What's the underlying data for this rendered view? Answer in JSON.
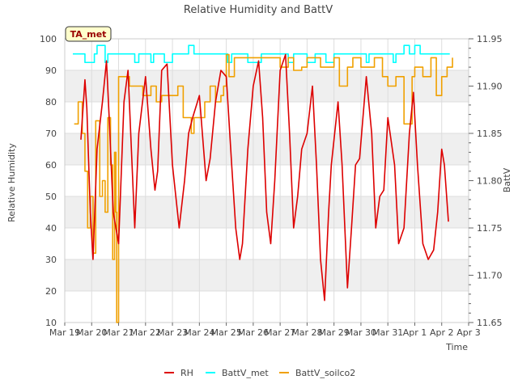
{
  "chart_data": {
    "type": "line",
    "title": "Relative Humidity and BattV",
    "site_label": "TA_met",
    "xlabel": "Time",
    "ylabel_left": "Relative Humidity",
    "ylabel_right": "BattV",
    "x_ticks": [
      "Mar 19",
      "Mar 20",
      "Mar 21",
      "Mar 22",
      "Mar 23",
      "Mar 24",
      "Mar 25",
      "Mar 26",
      "Mar 27",
      "Mar 28",
      "Mar 29",
      "Mar 30",
      "Mar 31",
      "Apr 1",
      "Apr 2",
      "Apr 3"
    ],
    "xlim_days": [
      0,
      15
    ],
    "ylim_left": [
      10,
      100
    ],
    "yticks_left": [
      "10",
      "20",
      "30",
      "40",
      "50",
      "60",
      "70",
      "80",
      "90",
      "100"
    ],
    "ylim_right": [
      11.65,
      11.95
    ],
    "yticks_right": [
      "11.65",
      "11.70",
      "11.75",
      "11.80",
      "11.85",
      "11.90",
      "11.95"
    ],
    "grid": true,
    "legend_position": "bottom",
    "series": [
      {
        "name": "RH",
        "axis": "left",
        "color": "#dd0000",
        "x": [
          0.6,
          0.75,
          0.82,
          0.95,
          1.05,
          1.2,
          1.4,
          1.55,
          1.65,
          1.8,
          2.0,
          2.2,
          2.35,
          2.5,
          2.6,
          2.75,
          3.0,
          3.2,
          3.35,
          3.45,
          3.6,
          3.8,
          4.0,
          4.25,
          4.45,
          4.6,
          4.75,
          5.0,
          5.25,
          5.4,
          5.6,
          5.8,
          6.0,
          6.2,
          6.35,
          6.5,
          6.6,
          6.8,
          7.0,
          7.2,
          7.35,
          7.5,
          7.65,
          7.8,
          8.0,
          8.2,
          8.35,
          8.5,
          8.65,
          8.8,
          9.0,
          9.2,
          9.35,
          9.5,
          9.65,
          9.8,
          9.9,
          10.0,
          10.15,
          10.3,
          10.5,
          10.65,
          10.8,
          10.95,
          11.2,
          11.4,
          11.55,
          11.7,
          11.85,
          12.0,
          12.25,
          12.4,
          12.6,
          12.8,
          12.95,
          13.1,
          13.3,
          13.5,
          13.7,
          13.85,
          14.0,
          14.1,
          14.25
        ],
        "y": [
          68,
          87,
          78,
          45,
          30,
          65,
          80,
          93,
          75,
          45,
          35,
          80,
          90,
          60,
          40,
          70,
          88,
          65,
          52,
          58,
          90,
          92,
          60,
          40,
          55,
          70,
          75,
          82,
          55,
          62,
          80,
          90,
          88,
          60,
          40,
          30,
          35,
          65,
          85,
          93,
          75,
          45,
          35,
          55,
          90,
          95,
          70,
          40,
          50,
          65,
          70,
          85,
          60,
          30,
          17,
          45,
          60,
          68,
          80,
          60,
          21,
          40,
          60,
          62,
          88,
          70,
          40,
          50,
          52,
          75,
          60,
          35,
          40,
          70,
          83,
          60,
          35,
          30,
          33,
          45,
          65,
          60,
          42
        ]
      },
      {
        "name": "BattV_met",
        "axis": "right",
        "color": "#00ffff",
        "x": [
          0.3,
          0.7,
          0.75,
          0.9,
          1.1,
          1.2,
          1.4,
          1.5,
          1.6,
          1.75,
          1.85,
          2.2,
          2.5,
          2.6,
          2.75,
          3.0,
          3.2,
          3.3,
          3.5,
          3.7,
          3.8,
          4.0,
          4.2,
          4.4,
          4.6,
          4.8,
          5.1,
          5.2,
          5.6,
          6.0,
          6.05,
          6.2,
          6.4,
          6.6,
          6.8,
          7.3,
          7.6,
          8.2,
          8.3,
          8.5,
          8.6,
          9.0,
          9.3,
          9.6,
          9.7,
          10.0,
          10.2,
          10.5,
          11.0,
          11.2,
          11.3,
          11.6,
          12.0,
          12.2,
          12.3,
          12.5,
          12.6,
          12.8,
          13.0,
          13.2,
          13.5,
          13.7,
          14.0,
          14.3
        ],
        "y": [
          11.934,
          11.934,
          11.925,
          11.925,
          11.934,
          11.943,
          11.943,
          11.925,
          11.934,
          11.934,
          11.934,
          11.934,
          11.934,
          11.925,
          11.934,
          11.934,
          11.925,
          11.934,
          11.934,
          11.925,
          11.925,
          11.934,
          11.934,
          11.934,
          11.943,
          11.934,
          11.934,
          11.934,
          11.934,
          11.934,
          11.925,
          11.934,
          11.934,
          11.934,
          11.925,
          11.934,
          11.934,
          11.934,
          11.925,
          11.934,
          11.934,
          11.925,
          11.934,
          11.934,
          11.925,
          11.934,
          11.934,
          11.934,
          11.934,
          11.925,
          11.934,
          11.934,
          11.934,
          11.925,
          11.934,
          11.934,
          11.943,
          11.934,
          11.943,
          11.934,
          11.934,
          11.934,
          11.934,
          11.934
        ]
      },
      {
        "name": "BattV_soilco2",
        "axis": "left",
        "color": "#f0a000",
        "x": [
          0.35,
          0.5,
          0.65,
          0.75,
          0.85,
          0.95,
          1.05,
          1.15,
          1.3,
          1.4,
          1.5,
          1.6,
          1.7,
          1.78,
          1.85,
          1.9,
          1.93,
          2.0,
          2.2,
          2.4,
          2.6,
          2.9,
          3.0,
          3.2,
          3.4,
          3.6,
          3.8,
          4.0,
          4.2,
          4.4,
          4.6,
          4.7,
          4.8,
          5.0,
          5.2,
          5.4,
          5.6,
          5.8,
          5.9,
          6.0,
          6.1,
          6.3,
          6.5,
          6.8,
          7.0,
          7.5,
          7.8,
          8.0,
          8.3,
          8.5,
          8.8,
          9.0,
          9.5,
          10.0,
          10.2,
          10.5,
          10.7,
          11.0,
          11.5,
          11.8,
          12.0,
          12.3,
          12.6,
          12.9,
          13.0,
          13.3,
          13.6,
          13.8,
          14.0,
          14.2,
          14.4
        ],
        "y": [
          73,
          80,
          70,
          58,
          40,
          50,
          32,
          74,
          50,
          55,
          45,
          75,
          60,
          30,
          64,
          45,
          10,
          88,
          88,
          85,
          85,
          82,
          82,
          85,
          80,
          82,
          82,
          82,
          85,
          75,
          75,
          70,
          75,
          75,
          80,
          85,
          80,
          82,
          85,
          95,
          88,
          94,
          94,
          94,
          94,
          94,
          94,
          91,
          94,
          90,
          91,
          94,
          91,
          94,
          85,
          91,
          94,
          91,
          94,
          88,
          85,
          88,
          73,
          88,
          91,
          88,
          94,
          82,
          88,
          91,
          94
        ]
      }
    ]
  }
}
